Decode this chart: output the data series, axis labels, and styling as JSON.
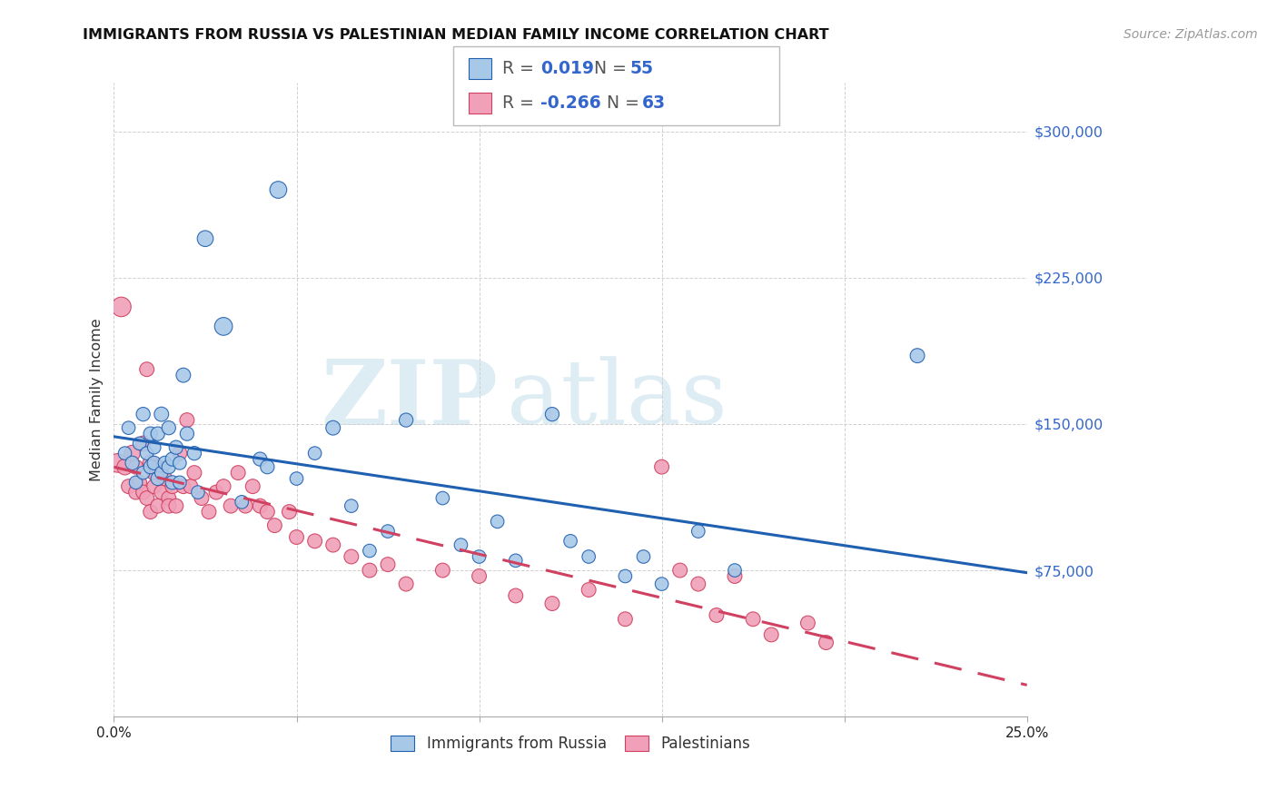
{
  "title": "IMMIGRANTS FROM RUSSIA VS PALESTINIAN MEDIAN FAMILY INCOME CORRELATION CHART",
  "source_text": "Source: ZipAtlas.com",
  "ylabel": "Median Family Income",
  "xlim": [
    0.0,
    0.25
  ],
  "ylim": [
    0,
    325000
  ],
  "yticks": [
    0,
    75000,
    150000,
    225000,
    300000
  ],
  "ytick_labels": [
    "",
    "$75,000",
    "$150,000",
    "$225,000",
    "$300,000"
  ],
  "xticks": [
    0.0,
    0.05,
    0.1,
    0.15,
    0.2,
    0.25
  ],
  "xtick_labels": [
    "0.0%",
    "",
    "",
    "",
    "",
    "25.0%"
  ],
  "blue_color": "#A8C8E8",
  "pink_color": "#F0A0B8",
  "line_blue": "#2060B0",
  "line_pink": "#D04060",
  "watermark_zip": "ZIP",
  "watermark_atlas": "atlas",
  "blue_scatter_x": [
    0.003,
    0.004,
    0.005,
    0.006,
    0.007,
    0.008,
    0.008,
    0.009,
    0.01,
    0.01,
    0.011,
    0.011,
    0.012,
    0.012,
    0.013,
    0.013,
    0.014,
    0.015,
    0.015,
    0.016,
    0.016,
    0.017,
    0.018,
    0.018,
    0.019,
    0.02,
    0.022,
    0.023,
    0.025,
    0.03,
    0.035,
    0.04,
    0.042,
    0.045,
    0.05,
    0.055,
    0.06,
    0.065,
    0.07,
    0.075,
    0.08,
    0.09,
    0.095,
    0.1,
    0.105,
    0.11,
    0.12,
    0.125,
    0.13,
    0.14,
    0.145,
    0.15,
    0.16,
    0.17,
    0.22
  ],
  "blue_scatter_y": [
    135000,
    148000,
    130000,
    120000,
    140000,
    155000,
    125000,
    135000,
    128000,
    145000,
    130000,
    138000,
    122000,
    145000,
    155000,
    125000,
    130000,
    128000,
    148000,
    132000,
    120000,
    138000,
    130000,
    120000,
    175000,
    145000,
    135000,
    115000,
    245000,
    200000,
    110000,
    132000,
    128000,
    270000,
    122000,
    135000,
    148000,
    108000,
    85000,
    95000,
    152000,
    112000,
    88000,
    82000,
    100000,
    80000,
    155000,
    90000,
    82000,
    72000,
    82000,
    68000,
    95000,
    75000,
    185000
  ],
  "blue_scatter_s": [
    55,
    55,
    60,
    55,
    55,
    60,
    55,
    55,
    60,
    60,
    60,
    55,
    60,
    60,
    65,
    55,
    60,
    60,
    60,
    60,
    60,
    60,
    55,
    55,
    65,
    60,
    60,
    55,
    80,
    100,
    55,
    60,
    60,
    90,
    55,
    55,
    65,
    55,
    55,
    55,
    60,
    55,
    55,
    55,
    55,
    55,
    60,
    55,
    55,
    55,
    55,
    55,
    55,
    55,
    65
  ],
  "pink_scatter_x": [
    0.001,
    0.002,
    0.003,
    0.004,
    0.005,
    0.006,
    0.006,
    0.007,
    0.008,
    0.008,
    0.009,
    0.009,
    0.01,
    0.01,
    0.011,
    0.011,
    0.012,
    0.012,
    0.013,
    0.014,
    0.015,
    0.015,
    0.016,
    0.017,
    0.018,
    0.019,
    0.02,
    0.021,
    0.022,
    0.024,
    0.026,
    0.028,
    0.03,
    0.032,
    0.034,
    0.036,
    0.038,
    0.04,
    0.042,
    0.044,
    0.048,
    0.05,
    0.055,
    0.06,
    0.065,
    0.07,
    0.075,
    0.08,
    0.09,
    0.1,
    0.11,
    0.12,
    0.13,
    0.14,
    0.15,
    0.155,
    0.16,
    0.165,
    0.17,
    0.175,
    0.18,
    0.19,
    0.195
  ],
  "pink_scatter_y": [
    130000,
    210000,
    128000,
    118000,
    135000,
    115000,
    128000,
    120000,
    140000,
    115000,
    178000,
    112000,
    130000,
    105000,
    125000,
    118000,
    128000,
    108000,
    115000,
    122000,
    112000,
    108000,
    118000,
    108000,
    135000,
    118000,
    152000,
    118000,
    125000,
    112000,
    105000,
    115000,
    118000,
    108000,
    125000,
    108000,
    118000,
    108000,
    105000,
    98000,
    105000,
    92000,
    90000,
    88000,
    82000,
    75000,
    78000,
    68000,
    75000,
    72000,
    62000,
    58000,
    65000,
    50000,
    128000,
    75000,
    68000,
    52000,
    72000,
    50000,
    42000,
    48000,
    38000
  ],
  "pink_scatter_s": [
    110,
    120,
    80,
    65,
    80,
    65,
    65,
    65,
    70,
    65,
    65,
    65,
    75,
    65,
    70,
    65,
    65,
    65,
    65,
    65,
    65,
    65,
    65,
    65,
    65,
    65,
    65,
    65,
    65,
    65,
    65,
    65,
    65,
    65,
    65,
    65,
    65,
    65,
    65,
    65,
    65,
    65,
    65,
    65,
    65,
    65,
    65,
    65,
    65,
    65,
    65,
    65,
    65,
    65,
    65,
    65,
    65,
    65,
    65,
    65,
    65,
    65,
    65
  ]
}
